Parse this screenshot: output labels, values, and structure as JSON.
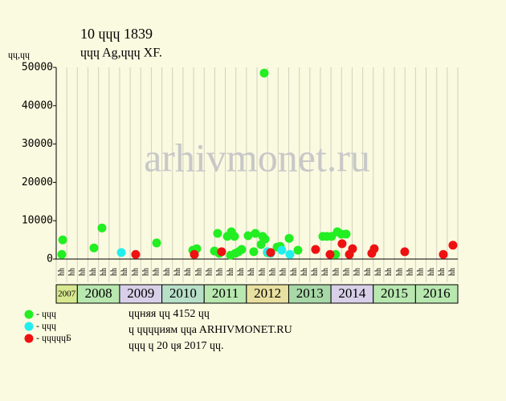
{
  "chart_data": {
    "type": "scatter",
    "title": "10 ɥɥɥ 1839",
    "subtitle": "ɥɥɥ Ag,ɥɥɥ XF.",
    "y_label": "ɥɥ,ɥɥ",
    "watermark": "arhivmonet.ru",
    "ylim": [
      0,
      50000
    ],
    "yticks": [
      0,
      10000,
      20000,
      30000,
      40000,
      50000
    ],
    "xlim": [
      0,
      38
    ],
    "columns": [
      "ɥɥ",
      "ɥɥ",
      "ɥɥ",
      "ɥɥ",
      "ɥɥ",
      "ɥɥ",
      "ɥɥ",
      "ɥɥ",
      "ɥɥ",
      "ɥɥ",
      "ɥɥ",
      "ɥɥ",
      "ɥɥ",
      "ɥɥ",
      "ɥɥ",
      "ɥɥ",
      "ɥɥ",
      "ɥɥ",
      "ɥɥ",
      "ɥɥ",
      "ɥɥ",
      "ɥɥ",
      "ɥɥ",
      "ɥɥ",
      "ɥɥ",
      "ɥɥ",
      "ɥɥ",
      "ɥɥ",
      "ɥɥ",
      "ɥɥ",
      "ɥɥ",
      "ɥɥ",
      "ɥɥ",
      "ɥɥ",
      "ɥɥ",
      "ɥɥ",
      "ɥɥ",
      "ɥɥ"
    ],
    "years": [
      "2007",
      "2008",
      "2009",
      "2010",
      "2011",
      "2012",
      "2013",
      "2014",
      "2015",
      "2016"
    ],
    "series": [
      {
        "name": "- ɥɥɥ",
        "color": "#22ee22",
        "x": [
          0.61,
          0.53,
          3.57,
          4.33,
          9.5,
          12.92,
          13.3,
          13.07,
          14.97,
          15.27,
          15.43,
          16.19,
          16.49,
          16.57,
          16.87,
          16.95,
          17.25,
          17.55,
          18.16,
          18.69,
          18.84,
          19.38,
          19.53,
          19.76,
          19.68,
          19.98,
          20.9,
          21.2,
          22.04,
          22.87,
          25.23,
          25.61,
          26.06,
          26.44,
          26.6,
          26.98,
          27.43
        ],
        "values": [
          5000,
          1200,
          2900,
          8100,
          4200,
          2300,
          2700,
          1200,
          2100,
          6700,
          1500,
          5900,
          1000,
          7100,
          5900,
          1500,
          1900,
          2500,
          6100,
          1900,
          6700,
          3800,
          5900,
          5200,
          48500,
          1700,
          3100,
          3300,
          5400,
          2300,
          5900,
          5900,
          5900,
          1200,
          7100,
          6500,
          6500
        ]
      },
      {
        "name": "- ɥɥɥ",
        "color": "#22eeee",
        "x": [
          6.16,
          19.98,
          20.29,
          21.35,
          22.11
        ],
        "values": [
          1700,
          1900,
          1500,
          2300,
          1200
        ]
      },
      {
        "name": "- ɥɥɥɥɥБ",
        "color": "#ee1111",
        "x": [
          7.52,
          13.07,
          15.65,
          20.29,
          24.54,
          25.91,
          27.05,
          27.74,
          28.04,
          29.86,
          30.09,
          32.98,
          36.63,
          37.54
        ],
        "values": [
          1200,
          1200,
          1900,
          1700,
          2500,
          1200,
          4000,
          1200,
          2700,
          1500,
          2700,
          1900,
          1200,
          3600
        ]
      }
    ],
    "notes": [
      "ɥɥняя ɥɥ 4152 ɥɥ",
      "ɥ ɥɥɥɥиям ɥɥa ARHIVMONET.RU",
      "ɥɥɥ ɥ 20 ɥя 2017 ɥɥ."
    ]
  }
}
